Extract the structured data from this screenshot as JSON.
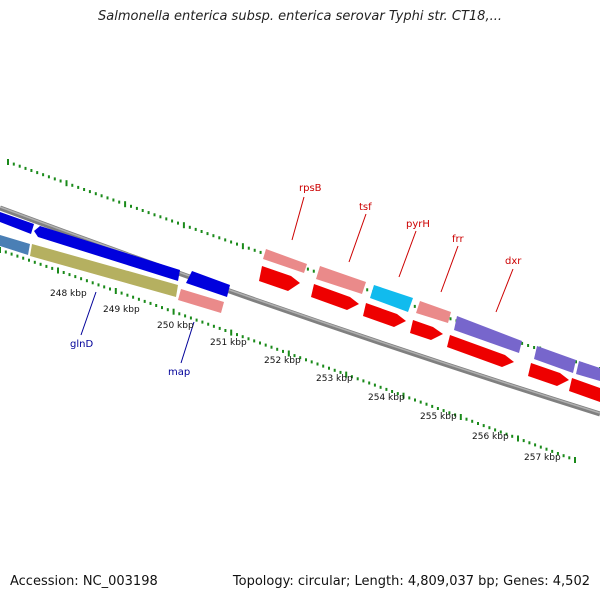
{
  "title": "Salmonella enterica subsp. enterica serovar Typhi str. CT18,...",
  "footer": {
    "accession": "Accession: NC_003198",
    "summary": "Topology: circular; Length: 4,809,037 bp; Genes: 4,502"
  },
  "ruler": {
    "labels": [
      "248 kbp",
      "249 kbp",
      "250 kbp",
      "251 kbp",
      "252 kbp",
      "253 kbp",
      "254 kbp",
      "255 kbp",
      "256 kbp",
      "257 kbp"
    ]
  },
  "genes": {
    "forward_labels": [
      "rpsB",
      "tsf",
      "pyrH",
      "frr",
      "dxr"
    ],
    "reverse_labels": [
      "glnD",
      "map"
    ],
    "forward_label_color": "#cc0000",
    "reverse_label_color": "#000099"
  },
  "colors": {
    "backbone": "#808080",
    "tick": "#1a8a1a",
    "blue": "#0000dd",
    "steel": "#4a7fb5",
    "olive": "#b5b060",
    "pink": "#ea8a8a",
    "red": "#ee0000",
    "cyan": "#11bbee",
    "violet": "#7766cc"
  }
}
